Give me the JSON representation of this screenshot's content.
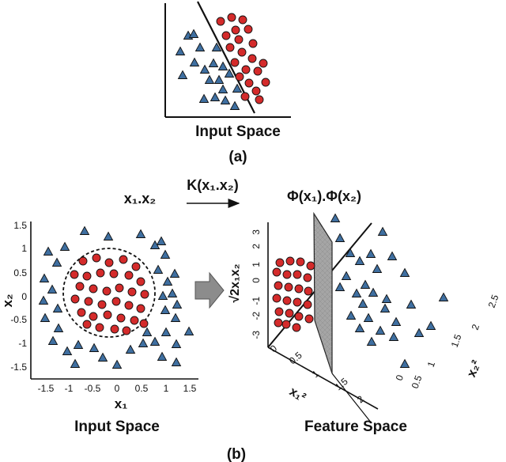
{
  "panel_a": {
    "caption": "Input Space",
    "sublabel": "(a)"
  },
  "panel_b": {
    "sublabel": "(b)",
    "left_plot": {
      "map_label": "x₁.x₂",
      "caption": "Input Space",
      "x_label": "x₁",
      "y_label": "x₂",
      "x_ticks": [
        "-1.5",
        "-1",
        "-0.5",
        "0",
        "0.5",
        "1",
        "1.5"
      ],
      "y_ticks": [
        "1.5",
        "1",
        "0.5",
        "0",
        "-0.5",
        "-1",
        "-1.5"
      ]
    },
    "kernel_label": "K(x₁.x₂)",
    "right_plot": {
      "map_label": "Φ(x₁).Φ(x₂)",
      "caption": "Feature Space",
      "x_label": "x₁²",
      "y_label": "x₂²",
      "z_label": "√2x₁x₂",
      "z_ticks": [
        "3",
        "2",
        "1",
        "0",
        "-1",
        "-2",
        "-3"
      ],
      "x_ticks": [
        "0",
        "0.5",
        "1",
        "1.5",
        "2"
      ],
      "y_ticks": [
        "0",
        "0.5",
        "1",
        "1.5",
        "2",
        "2.5"
      ]
    }
  },
  "colors": {
    "circle_class": "#d42b2b",
    "triangle_class": "#3f6fa0",
    "plane": "#9a9a9a",
    "arrow": "#8c8c8c"
  }
}
